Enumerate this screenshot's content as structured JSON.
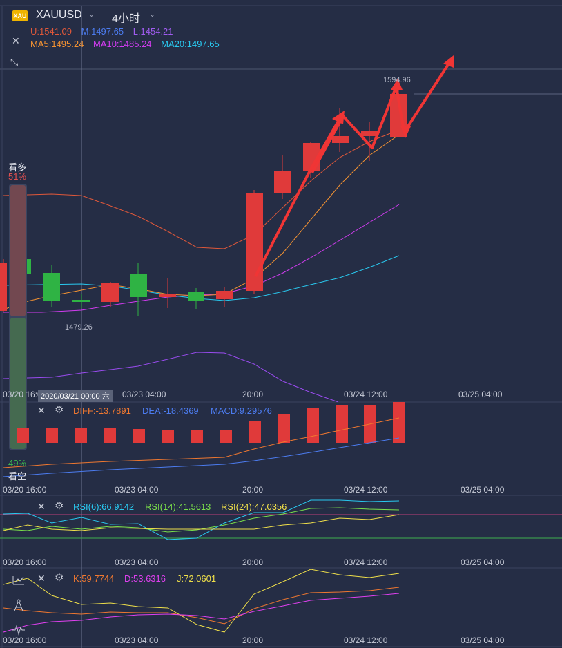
{
  "header": {
    "logo_text": "XAU",
    "symbol": "XAUUSD",
    "period": "4小时",
    "boll": {
      "upper": "U:1541.09",
      "mid": "M:1497.65",
      "lower": "L:1454.21"
    },
    "ma": {
      "ma5": "MA5:1495.24",
      "ma10": "MA10:1485.24",
      "ma20": "MA20:1497.65"
    }
  },
  "main_chart": {
    "high_label": "1594.96",
    "low_label": "1479.26",
    "crosshair_date": "2020/03/21 00:00 六",
    "time_axis": [
      "03/20 16:00",
      "03/23 04:00",
      "20:00",
      "03/24 12:00",
      "03/25 04:00"
    ]
  },
  "sentiment": {
    "bull_label": "看多",
    "bull_pct": "51%",
    "bear_pct": "49%",
    "bear_label": "看空"
  },
  "macd": {
    "diff": "DIFF:-13.7891",
    "dea": "DEA:-18.4369",
    "macd": "MACD:9.29576"
  },
  "rsi": {
    "rsi6": "RSI(6):66.9142",
    "rsi14": "RSI(14):41.5613",
    "rsi24": "RSI(24):47.0356"
  },
  "kdj": {
    "k": "K:59.7744",
    "d": "D:53.6316",
    "j": "J:72.0601"
  },
  "colors": {
    "up": "#2fb344",
    "down": "#e03a3a",
    "ma5": "#f39232",
    "ma10": "#d23cf0",
    "ma20": "#29c9f0",
    "boll_upper": "#e0583a",
    "boll_lower": "#9a4cf0",
    "dif": "#f07830",
    "dea": "#4c7cf0",
    "rsi6": "#29c9f0",
    "rsi14": "#7ae04a",
    "rsi24": "#f0e04a",
    "k": "#f07830",
    "d": "#e040f0",
    "j": "#f0e04a"
  },
  "icons": [
    "close-icon",
    "collapse-icon",
    "gear-icon",
    "chart-icon",
    "compass-icon",
    "wave-icon",
    "chevron-down-icon"
  ]
}
